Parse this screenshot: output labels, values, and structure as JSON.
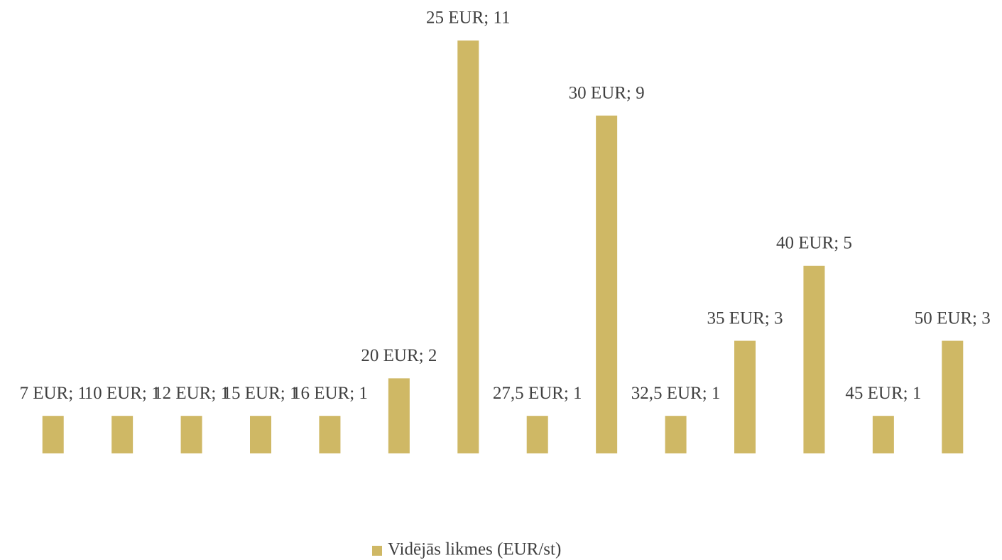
{
  "chart_data": {
    "type": "bar",
    "categories": [
      "7 EUR",
      "10 EUR",
      "12 EUR",
      "15 EUR",
      "16 EUR",
      "20 EUR",
      "25 EUR",
      "27,5 EUR",
      "30 EUR",
      "32,5 EUR",
      "35 EUR",
      "40 EUR",
      "45 EUR",
      "50 EUR"
    ],
    "series": [
      {
        "name": "Vidējās likmes (EUR/st)",
        "color": "#cfb865",
        "values": [
          1,
          1,
          1,
          1,
          1,
          2,
          11,
          1,
          9,
          1,
          3,
          5,
          1,
          3
        ],
        "value_labels": [
          "7 EUR; 1",
          "10 EUR; 1",
          "12 EUR; 1",
          "15 EUR; 1",
          "16 EUR; 1",
          "20 EUR; 2",
          "25 EUR; 11",
          "27,5 EUR; 1",
          "30 EUR; 9",
          "32,5 EUR; 1",
          "35 EUR; 3",
          "40 EUR; 5",
          "45 EUR; 1",
          "50 EUR; 3"
        ]
      }
    ],
    "legend": "bottom"
  }
}
